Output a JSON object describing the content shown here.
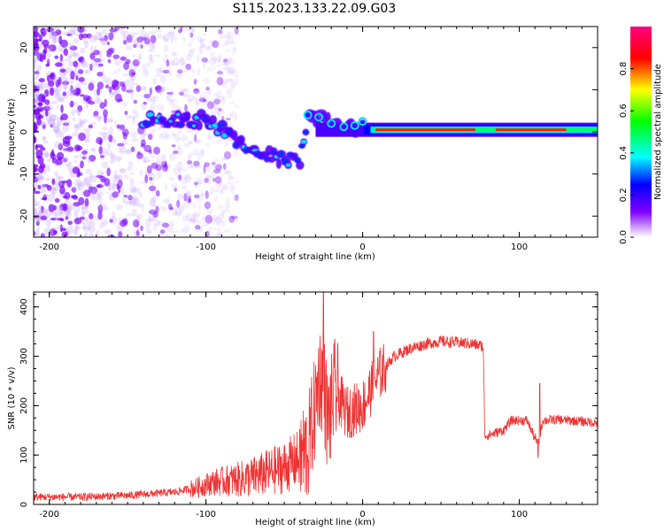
{
  "title": "S115.2023.133.22.09.G03",
  "chart_data": [
    {
      "type": "heatmap",
      "xlabel": "Height of straight line (km)",
      "ylabel": "Frequency (Hz)",
      "xlim": [
        -210,
        150
      ],
      "ylim": [
        -25,
        25
      ],
      "xticks": [
        -200,
        -100,
        0,
        100
      ],
      "xtick_labels": [
        "-200",
        "-100",
        "0",
        "100"
      ],
      "yticks": [
        -20,
        -10,
        0,
        10,
        20
      ],
      "ytick_labels": [
        "-20",
        "-10",
        "0",
        "10",
        "20"
      ],
      "grid": false,
      "colorbar": {
        "label": "Normalized spectral amplitude",
        "range": [
          0,
          1
        ],
        "ticks": [
          0.0,
          0.2,
          0.4,
          0.6,
          0.8
        ],
        "tick_labels": [
          "0.0",
          "0.2",
          "0.4",
          "0.6",
          "0.8"
        ],
        "colors": [
          "#ffffff",
          "#8000ff",
          "#0000ff",
          "#00ffff",
          "#00ff00",
          "#ffff00",
          "#ff0000",
          "#ff0080"
        ]
      },
      "features": {
        "noise_region_x": [
          -210,
          -80
        ],
        "dominant_track": [
          {
            "x": -140,
            "y": 3
          },
          {
            "x": -100,
            "y": 3
          },
          {
            "x": -85,
            "y": -1
          },
          {
            "x": -70,
            "y": -4
          },
          {
            "x": -55,
            "y": -6
          },
          {
            "x": -40,
            "y": -7
          },
          {
            "x": -35,
            "y": 4
          },
          {
            "x": -25,
            "y": 3
          },
          {
            "x": -15,
            "y": 1
          },
          {
            "x": 0,
            "y": 1
          },
          {
            "x": 50,
            "y": 0.5
          },
          {
            "x": 100,
            "y": 0.5
          },
          {
            "x": 150,
            "y": 1
          }
        ],
        "strong_band_x": [
          5,
          150
        ],
        "strong_band_y": 0.5
      }
    },
    {
      "type": "line",
      "xlabel": "Height of straight line (km)",
      "ylabel": "SNR (10 * v/v)",
      "xlim": [
        -210,
        150
      ],
      "ylim": [
        0,
        430
      ],
      "xticks": [
        -200,
        -100,
        0,
        100
      ],
      "xtick_labels": [
        "-200",
        "-100",
        "0",
        "100"
      ],
      "yticks": [
        0,
        100,
        200,
        300,
        400
      ],
      "ytick_labels": [
        "0",
        "100",
        "200",
        "300",
        "400"
      ],
      "grid": false,
      "series": [
        {
          "color": "#ee3333",
          "x": [
            -210,
            -180,
            -150,
            -120,
            -105,
            -95,
            -80,
            -70,
            -60,
            -50,
            -42,
            -35,
            -30,
            -28,
            -25,
            -22,
            -18,
            -10,
            0,
            10,
            20,
            30,
            40,
            50,
            60,
            70,
            77,
            78,
            80,
            90,
            95,
            105,
            112,
            115,
            125,
            140,
            150
          ],
          "y": [
            15,
            15,
            18,
            25,
            35,
            45,
            50,
            55,
            65,
            75,
            90,
            110,
            200,
            260,
            250,
            160,
            230,
            185,
            200,
            260,
            300,
            315,
            325,
            330,
            328,
            325,
            320,
            140,
            140,
            150,
            170,
            170,
            120,
            170,
            172,
            168,
            165
          ]
        }
      ],
      "spikes": [
        {
          "x": -25,
          "y": 430
        },
        {
          "x": 7,
          "y": 350
        },
        {
          "x": 113,
          "y": 245
        },
        {
          "x": 112,
          "y": 95
        }
      ]
    }
  ]
}
